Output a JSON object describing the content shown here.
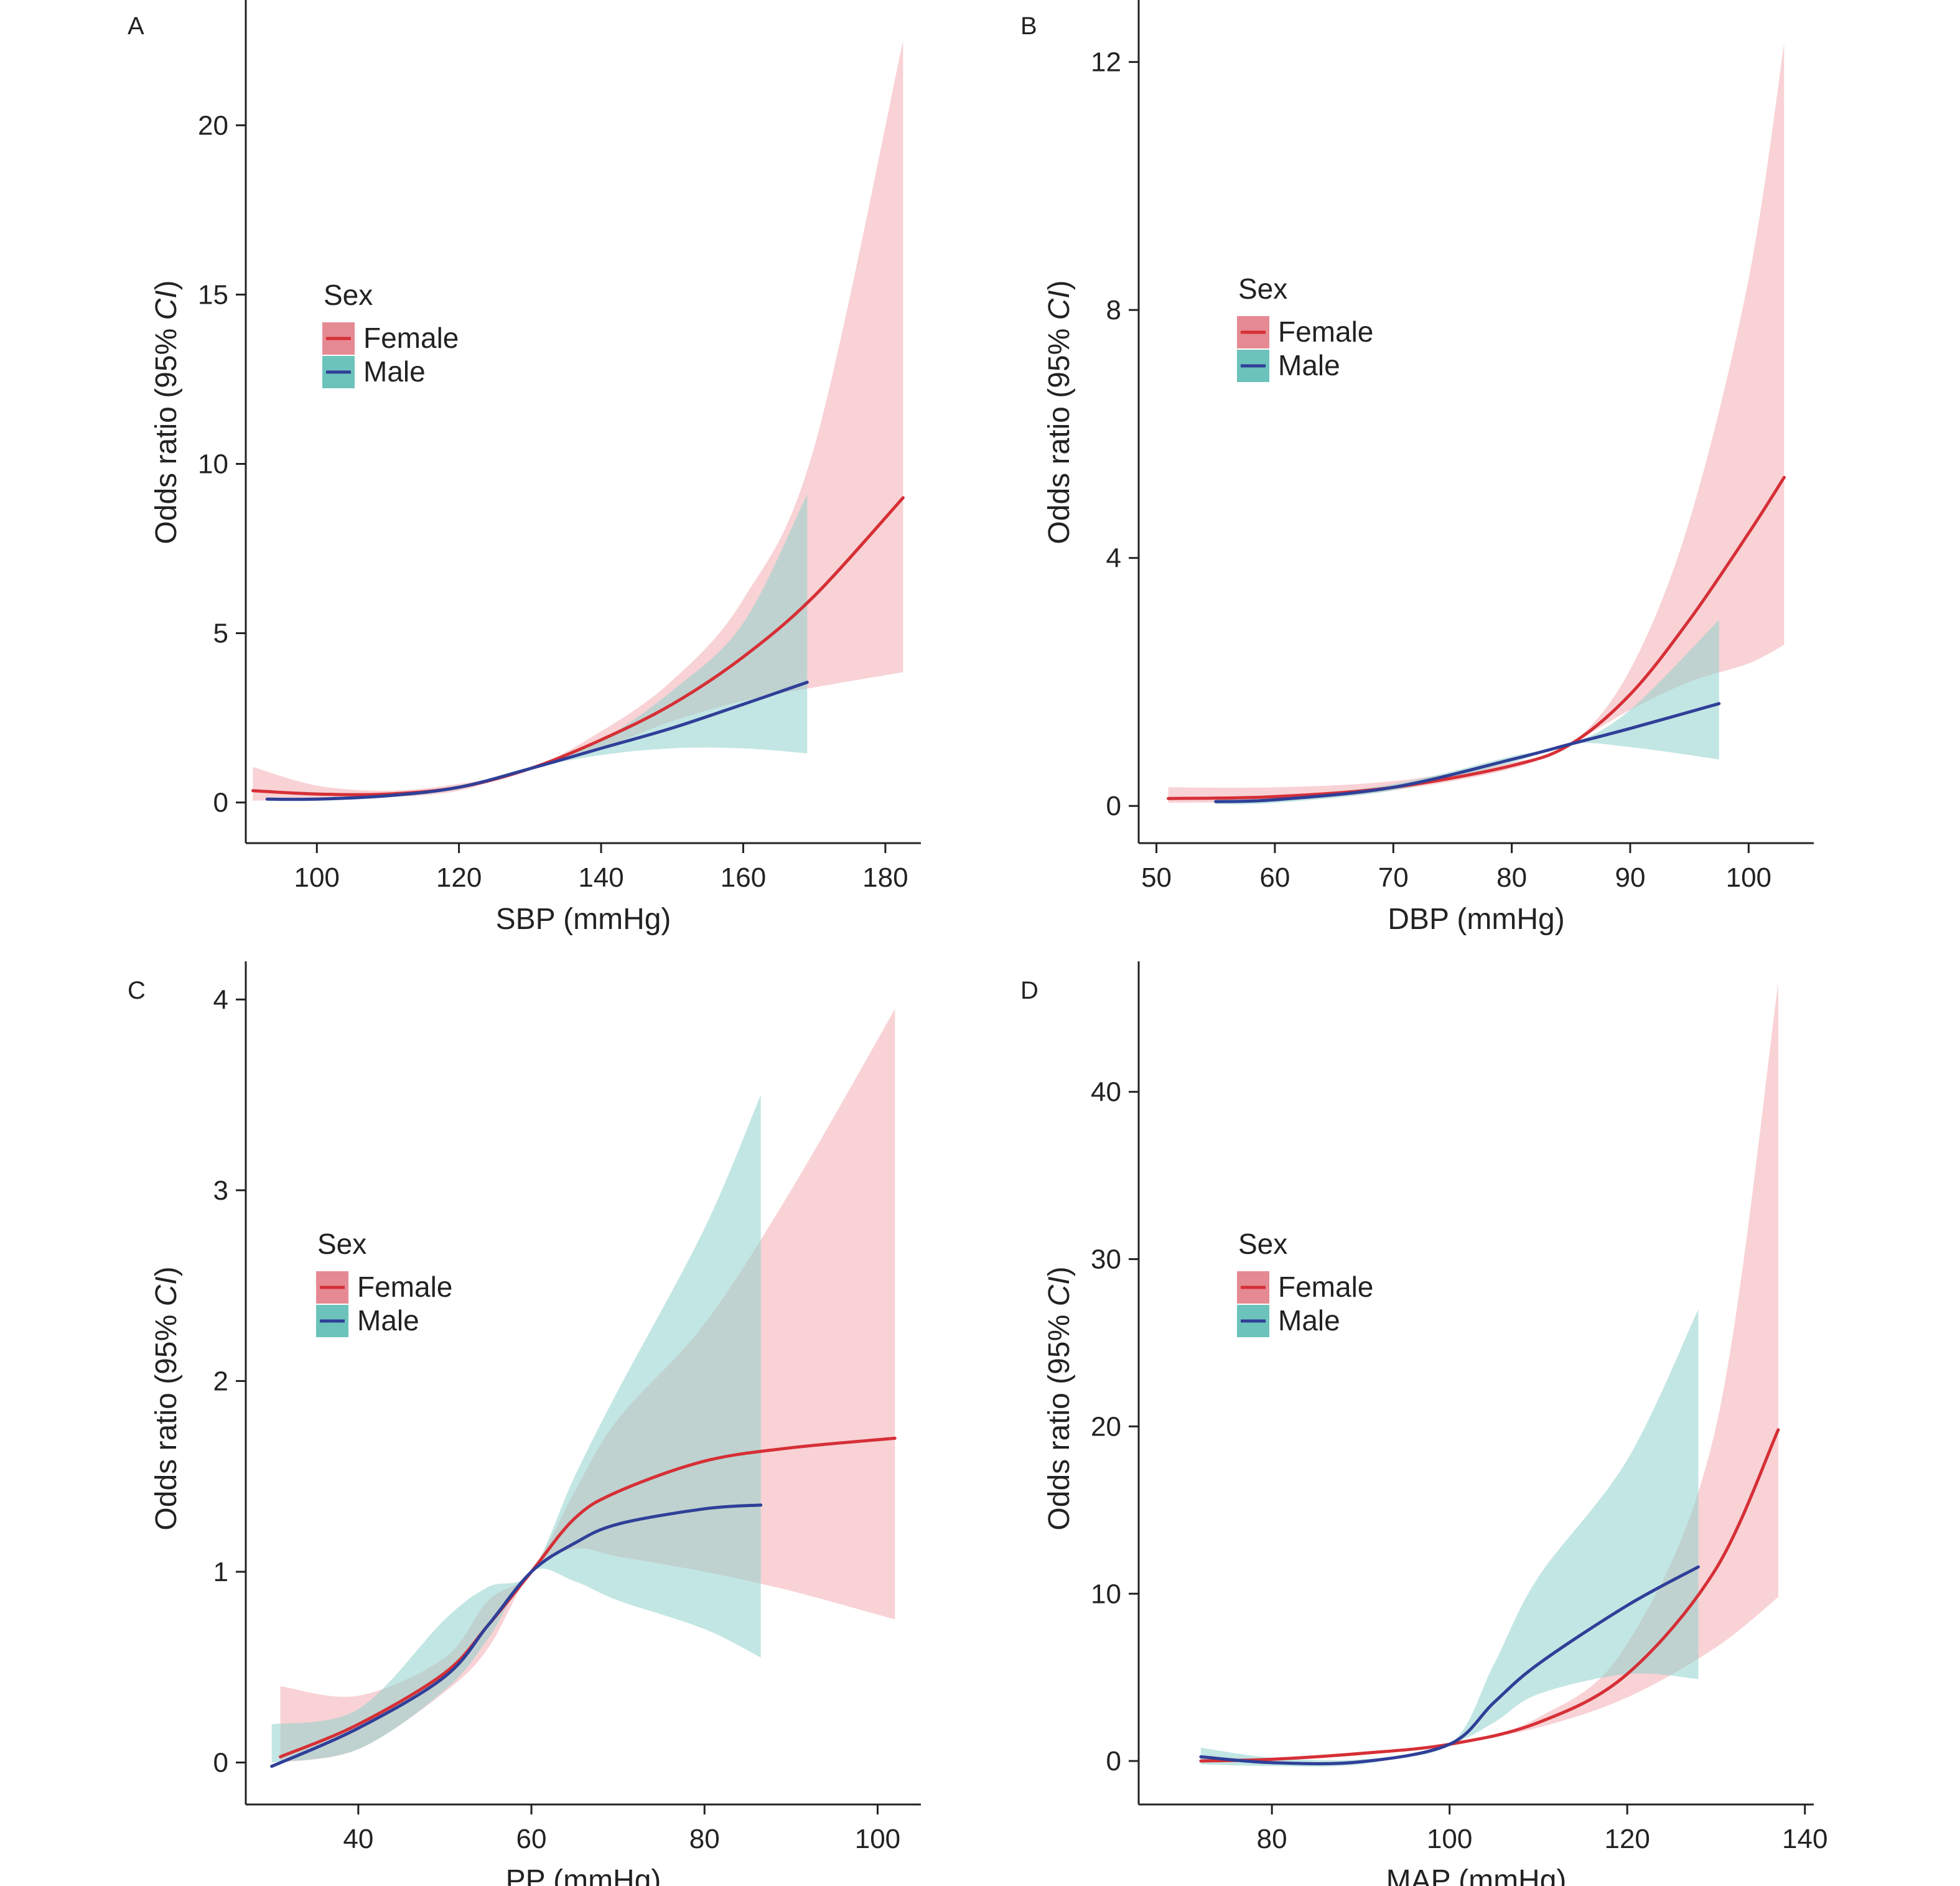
{
  "colors": {
    "female_line": "#d62f36",
    "female_band": "#f3b4b9",
    "male_line": "#2f3f98",
    "male_band": "#8fd2cc",
    "axis": "#222222"
  },
  "legend": {
    "title": "Sex",
    "items": [
      "Female",
      "Male"
    ]
  },
  "ylabel_text": {
    "prefix": "Odds ratio (95% ",
    "ci": "CI",
    "suffix": ")"
  },
  "chart_data": [
    {
      "type": "line",
      "panel": "A",
      "xlabel": "SBP (mmHg)",
      "ylabel": "Odds ratio (95% CI)",
      "xlim": [
        90,
        185
      ],
      "ylim": [
        -1.2,
        23.7
      ],
      "xticks": [
        100,
        120,
        140,
        160,
        180
      ],
      "yticks": [
        0,
        5,
        10,
        15,
        20
      ],
      "series": [
        {
          "name": "Female",
          "x": [
            91,
            100,
            110,
            120,
            130,
            140,
            150,
            160,
            170,
            182.5
          ],
          "y": [
            0.35,
            0.25,
            0.25,
            0.45,
            1.0,
            1.85,
            2.9,
            4.3,
            6.1,
            9.0
          ],
          "lower": [
            0.05,
            0.1,
            0.15,
            0.35,
            1.0,
            1.6,
            2.4,
            3.0,
            3.4,
            3.85
          ],
          "upper": [
            1.05,
            0.5,
            0.35,
            0.55,
            1.0,
            2.1,
            3.6,
            6.0,
            10.5,
            22.5
          ]
        },
        {
          "name": "Male",
          "x": [
            93,
            100,
            110,
            120,
            130,
            140,
            150,
            160,
            169
          ],
          "y": [
            0.1,
            0.1,
            0.2,
            0.45,
            1.0,
            1.6,
            2.2,
            2.9,
            3.55
          ],
          "lower": [
            0.05,
            0.05,
            0.15,
            0.4,
            1.0,
            1.4,
            1.6,
            1.6,
            1.45
          ],
          "upper": [
            0.15,
            0.15,
            0.25,
            0.5,
            1.0,
            1.85,
            3.3,
            5.3,
            9.1
          ]
        }
      ]
    },
    {
      "type": "line",
      "panel": "B",
      "xlabel": "DBP (mmHg)",
      "ylabel": "Odds ratio (95% CI)",
      "xlim": [
        48.5,
        105.5
      ],
      "ylim": [
        -0.6,
        13.0
      ],
      "xticks": [
        50,
        60,
        70,
        80,
        90,
        100
      ],
      "yticks": [
        0,
        4,
        8,
        12
      ],
      "series": [
        {
          "name": "Female",
          "x": [
            51,
            60,
            70,
            80,
            85,
            90,
            95,
            100,
            103
          ],
          "y": [
            0.12,
            0.15,
            0.3,
            0.65,
            1.0,
            1.8,
            3.0,
            4.4,
            5.3
          ],
          "lower": [
            0.05,
            0.08,
            0.25,
            0.6,
            1.0,
            1.55,
            2.0,
            2.3,
            2.6
          ],
          "upper": [
            0.3,
            0.3,
            0.4,
            0.7,
            1.0,
            2.2,
            4.6,
            8.5,
            12.3
          ]
        },
        {
          "name": "Male",
          "x": [
            55,
            60,
            70,
            80,
            85,
            90,
            97.5
          ],
          "y": [
            0.07,
            0.1,
            0.3,
            0.75,
            1.0,
            1.25,
            1.65
          ],
          "lower": [
            0.03,
            0.05,
            0.25,
            0.7,
            1.0,
            0.95,
            0.75
          ],
          "upper": [
            0.12,
            0.15,
            0.35,
            0.8,
            1.0,
            1.55,
            3.0
          ]
        }
      ]
    },
    {
      "type": "line",
      "panel": "C",
      "xlabel": "PP (mmHg)",
      "ylabel": "Odds ratio (95% CI)",
      "xlim": [
        27,
        105
      ],
      "ylim": [
        -0.22,
        4.2
      ],
      "xticks": [
        40,
        60,
        80,
        100
      ],
      "yticks": [
        0,
        1,
        2,
        3,
        4
      ],
      "series": [
        {
          "name": "Female",
          "x": [
            31,
            40,
            50,
            55,
            60,
            65,
            70,
            80,
            90,
            102
          ],
          "y": [
            0.03,
            0.2,
            0.47,
            0.72,
            1.0,
            1.28,
            1.42,
            1.58,
            1.65,
            1.7
          ],
          "lower": [
            0.0,
            0.07,
            0.37,
            0.6,
            1.0,
            1.12,
            1.08,
            1.0,
            0.9,
            0.75
          ],
          "upper": [
            0.4,
            0.35,
            0.55,
            0.85,
            1.0,
            1.42,
            1.8,
            2.3,
            3.0,
            3.95
          ]
        },
        {
          "name": "Male",
          "x": [
            30,
            40,
            50,
            55,
            60,
            65,
            70,
            80,
            86.5
          ],
          "y": [
            -0.02,
            0.18,
            0.45,
            0.72,
            1.0,
            1.15,
            1.25,
            1.33,
            1.35
          ],
          "lower": [
            0.0,
            0.07,
            0.38,
            0.65,
            1.0,
            0.95,
            0.85,
            0.7,
            0.55
          ],
          "upper": [
            0.2,
            0.28,
            0.75,
            0.92,
            1.0,
            1.5,
            1.95,
            2.8,
            3.5
          ]
        }
      ]
    },
    {
      "type": "line",
      "panel": "D",
      "xlabel": "MAP (mmHg)",
      "ylabel": "Odds ratio (95% CI)",
      "xlim": [
        65,
        141
      ],
      "ylim": [
        -2.6,
        47.8
      ],
      "xticks": [
        80,
        100,
        120,
        140
      ],
      "yticks": [
        0,
        10,
        20,
        30,
        40
      ],
      "series": [
        {
          "name": "Female",
          "x": [
            72,
            80,
            90,
            100,
            110,
            120,
            130,
            137
          ],
          "y": [
            0.0,
            0.1,
            0.45,
            1.0,
            2.3,
            5.2,
            11.5,
            19.8
          ],
          "lower": [
            0.0,
            0.05,
            0.35,
            1.0,
            2.0,
            3.8,
            6.8,
            9.8
          ],
          "upper": [
            0.2,
            0.2,
            0.55,
            1.0,
            2.6,
            7.0,
            20.0,
            46.5
          ]
        },
        {
          "name": "Male",
          "x": [
            72,
            80,
            90,
            100,
            105,
            110,
            120,
            128
          ],
          "y": [
            0.25,
            -0.1,
            -0.05,
            1.0,
            3.5,
            5.8,
            9.3,
            11.6
          ],
          "lower": [
            -0.2,
            -0.3,
            -0.2,
            1.0,
            2.3,
            4.0,
            5.2,
            4.9
          ],
          "upper": [
            0.8,
            0.2,
            0.1,
            1.0,
            5.8,
            11.0,
            18.0,
            27.0
          ]
        }
      ]
    }
  ]
}
